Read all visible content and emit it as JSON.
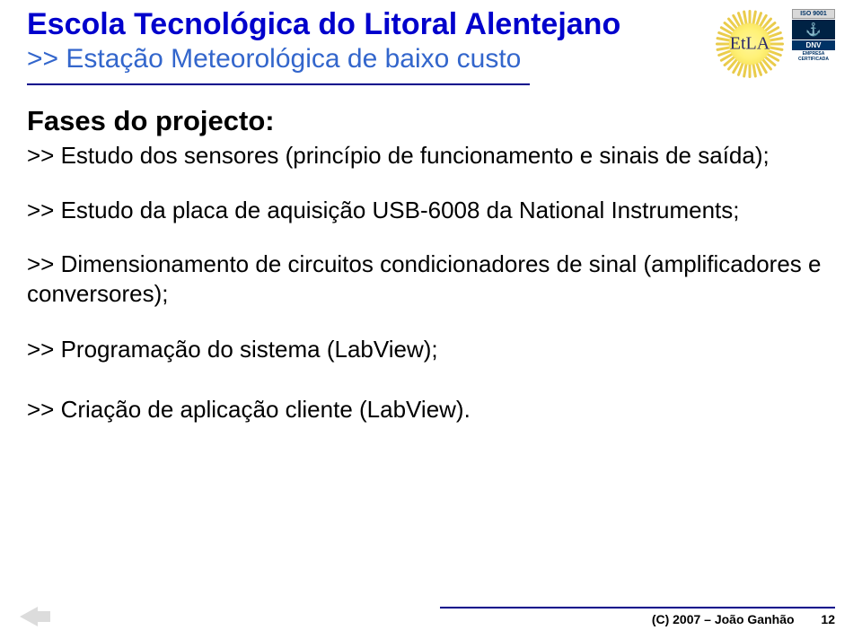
{
  "header": {
    "title": "Escola Tecnológica do Litoral Alentejano",
    "subtitle": ">> Estação Meteorológica de baixo custo",
    "title_color": "#0000cc",
    "subtitle_color": "#3366cc",
    "title_fontsize": 34,
    "subtitle_fontsize": 30
  },
  "logo": {
    "text": "EtLA",
    "badge": {
      "iso": "ISO 9001",
      "dnv": "DNV",
      "empresa": "EMPRESA CERTIFICADA"
    }
  },
  "body": {
    "heading": "Fases do projecto:",
    "heading_fontsize": 31,
    "text_fontsize": 26,
    "items": [
      ">> Estudo dos sensores (princípio de funcionamento e sinais de saída);",
      ">> Estudo da placa de aquisição USB-6008 da National Instruments;",
      ">> Dimensionamento de circuitos condicionadores de sinal (amplificadores e conversores);",
      ">> Programação do sistema (LabView);",
      ">> Criação de aplicação cliente (LabView)."
    ]
  },
  "footer": {
    "copyright": "(C) 2007 – João Ganhão",
    "page": "12",
    "line_color": "#00008b"
  },
  "colors": {
    "background": "#ffffff",
    "text": "#000000",
    "hr": "#00008b",
    "arrow": "#dcdcdc"
  }
}
